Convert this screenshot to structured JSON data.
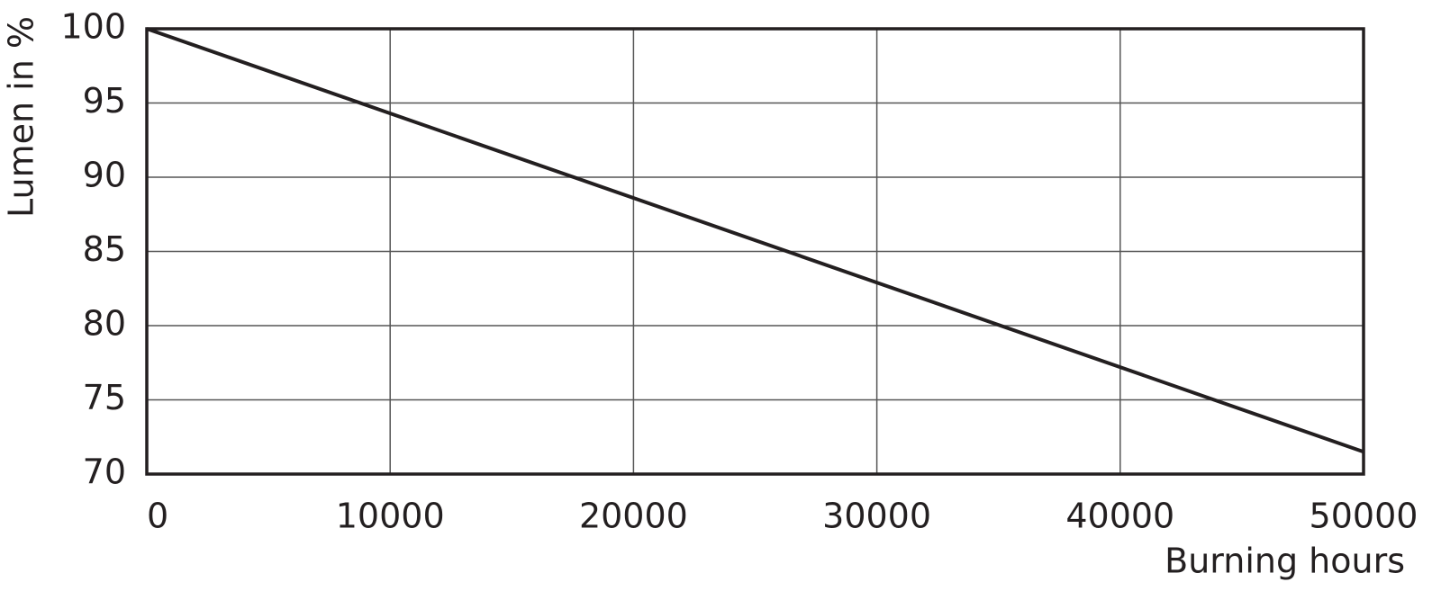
{
  "chart_data": {
    "type": "line",
    "x_label": "Burning hours",
    "y_label": "Lumen in %",
    "x": [
      0,
      50000
    ],
    "values": [
      100,
      71.5
    ],
    "color": "#231f20",
    "xlim": [
      0,
      50000
    ],
    "xticks": [
      0,
      10000,
      20000,
      30000,
      40000,
      50000
    ],
    "ylim": [
      70,
      100
    ],
    "yticks": [
      70,
      75,
      80,
      85,
      90,
      95,
      100
    ],
    "grid": true
  }
}
